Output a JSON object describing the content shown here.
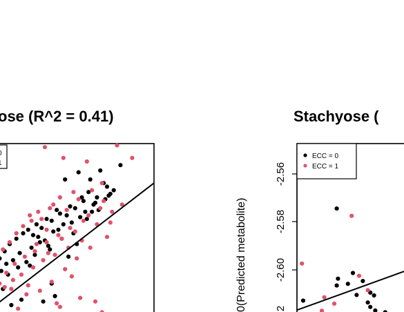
{
  "colors": {
    "ecc0": "#000000",
    "ecc1": "#DF536B",
    "line": "#000000",
    "frame": "#000000"
  },
  "chart_data": [
    {
      "type": "scatter",
      "title": "ose (R^2 = 0.41)",
      "xlabel": "",
      "ylabel": "",
      "legend": {
        "placement": "top-left",
        "entries": [
          "0",
          "1"
        ]
      },
      "xlim": [
        0,
        1
      ],
      "ylim": [
        0,
        1
      ],
      "fit_line": {
        "x": [
          0.0,
          1.0
        ],
        "y": [
          0.06,
          0.78
        ]
      },
      "series": [
        {
          "name": "0",
          "color": "#000000",
          "x": [
            0.47,
            0.55,
            0.68,
            0.62,
            0.72,
            0.8,
            0.74,
            0.57,
            0.65,
            0.5,
            0.42,
            0.48,
            0.36,
            0.3,
            0.25,
            0.22,
            0.18,
            0.14,
            0.11,
            0.08,
            0.05,
            0.28,
            0.33,
            0.39,
            0.44,
            0.53,
            0.58,
            0.61,
            0.66,
            0.7,
            0.63,
            0.56,
            0.46,
            0.4,
            0.35,
            0.27,
            0.2,
            0.16,
            0.12,
            0.09,
            0.31,
            0.37,
            0.43,
            0.51,
            0.59,
            0.64,
            0.71,
            0.76,
            0.52,
            0.45,
            0.38,
            0.29,
            0.24,
            0.19,
            0.13,
            0.34,
            0.41,
            0.49,
            0.54,
            0.6,
            0.67,
            0.73,
            0.21,
            0.26,
            0.32,
            0.39,
            0.15,
            0.1
          ],
          "y": [
            0.8,
            0.84,
            0.85,
            0.8,
            0.76,
            0.88,
            0.72,
            0.7,
            0.67,
            0.65,
            0.63,
            0.6,
            0.58,
            0.55,
            0.52,
            0.5,
            0.47,
            0.44,
            0.4,
            0.36,
            0.3,
            0.49,
            0.53,
            0.57,
            0.61,
            0.64,
            0.68,
            0.73,
            0.7,
            0.78,
            0.62,
            0.59,
            0.55,
            0.51,
            0.46,
            0.42,
            0.39,
            0.35,
            0.33,
            0.29,
            0.48,
            0.43,
            0.52,
            0.56,
            0.62,
            0.66,
            0.69,
            0.74,
            0.5,
            0.47,
            0.41,
            0.38,
            0.34,
            0.31,
            0.27,
            0.12,
            0.15,
            0.37,
            0.44,
            0.58,
            0.63,
            0.71,
            0.13,
            0.32,
            0.45,
            0.22,
            0.1,
            0.19
          ]
        },
        {
          "name": "1",
          "color": "#DF536B",
          "x": [
            0.35,
            0.78,
            0.46,
            0.6,
            0.69,
            0.52,
            0.44,
            0.38,
            0.31,
            0.27,
            0.22,
            0.18,
            0.14,
            0.1,
            0.07,
            0.26,
            0.33,
            0.4,
            0.48,
            0.55,
            0.63,
            0.7,
            0.75,
            0.66,
            0.58,
            0.5,
            0.43,
            0.36,
            0.29,
            0.23,
            0.17,
            0.12,
            0.08,
            0.3,
            0.37,
            0.45,
            0.53,
            0.61,
            0.68,
            0.74,
            0.81,
            0.57,
            0.49,
            0.41,
            0.34,
            0.28,
            0.21,
            0.16,
            0.11,
            0.06,
            0.32,
            0.39,
            0.47,
            0.54,
            0.62,
            0.72,
            0.56,
            0.42,
            0.24,
            0.15,
            0.69,
            0.87,
            0.19,
            0.51,
            0.36,
            0.25,
            0.44,
            0.58,
            0.65
          ],
          "y": [
            0.98,
            0.99,
            0.92,
            0.9,
            0.78,
            0.73,
            0.7,
            0.64,
            0.62,
            0.57,
            0.54,
            0.5,
            0.45,
            0.41,
            0.35,
            0.6,
            0.58,
            0.66,
            0.63,
            0.69,
            0.74,
            0.68,
            0.62,
            0.55,
            0.57,
            0.53,
            0.49,
            0.45,
            0.4,
            0.37,
            0.33,
            0.28,
            0.22,
            0.44,
            0.39,
            0.47,
            0.51,
            0.6,
            0.64,
            0.56,
            0.66,
            0.46,
            0.42,
            0.38,
            0.35,
            0.31,
            0.27,
            0.24,
            0.2,
            0.25,
            0.18,
            0.23,
            0.3,
            0.36,
            0.42,
            0.48,
            0.14,
            0.11,
            0.16,
            0.19,
            0.06,
            0.92,
            0.08,
            0.26,
            0.52,
            0.21,
            0.09,
            0.05,
            0.12
          ]
        }
      ]
    },
    {
      "type": "scatter",
      "title": "Stachyose (",
      "xlabel": "",
      "ylabel": "0(Predicted metabolite)",
      "legend": {
        "placement": "top-left",
        "entries": [
          "ECC = 0",
          "ECC = 1"
        ]
      },
      "y_ticks": [
        "-2.56",
        "-2.58",
        "-2.60",
        "2"
      ],
      "xlim": [
        0,
        1
      ],
      "ylim": [
        -2.624,
        -2.548
      ],
      "fit_line": {
        "x": [
          0.0,
          1.0
        ],
        "y": [
          -2.6185,
          -2.5995
        ]
      },
      "series": [
        {
          "name": "ECC = 0",
          "color": "#000000",
          "x": [
            0.05,
            0.32,
            0.33,
            0.32,
            0.41,
            0.48,
            0.45,
            0.53,
            0.57,
            0.59,
            0.63,
            0.71,
            0.59,
            0.62,
            0.43
          ],
          "y": [
            -2.6145,
            -2.5755,
            -2.6052,
            -2.6081,
            -2.6074,
            -2.6121,
            -2.6028,
            -2.6062,
            -2.6153,
            -2.6172,
            -2.6187,
            -2.6194,
            -2.6111,
            -2.6123,
            -2.6213
          ]
        },
        {
          "name": "ECC = 1",
          "color": "#DF536B",
          "x": [
            0.04,
            0.22,
            0.3,
            0.44,
            0.5,
            0.57,
            0.2
          ],
          "y": [
            -2.5988,
            -2.6131,
            -2.6158,
            -2.5786,
            -2.604,
            -2.6101,
            -2.6188
          ]
        }
      ]
    }
  ]
}
